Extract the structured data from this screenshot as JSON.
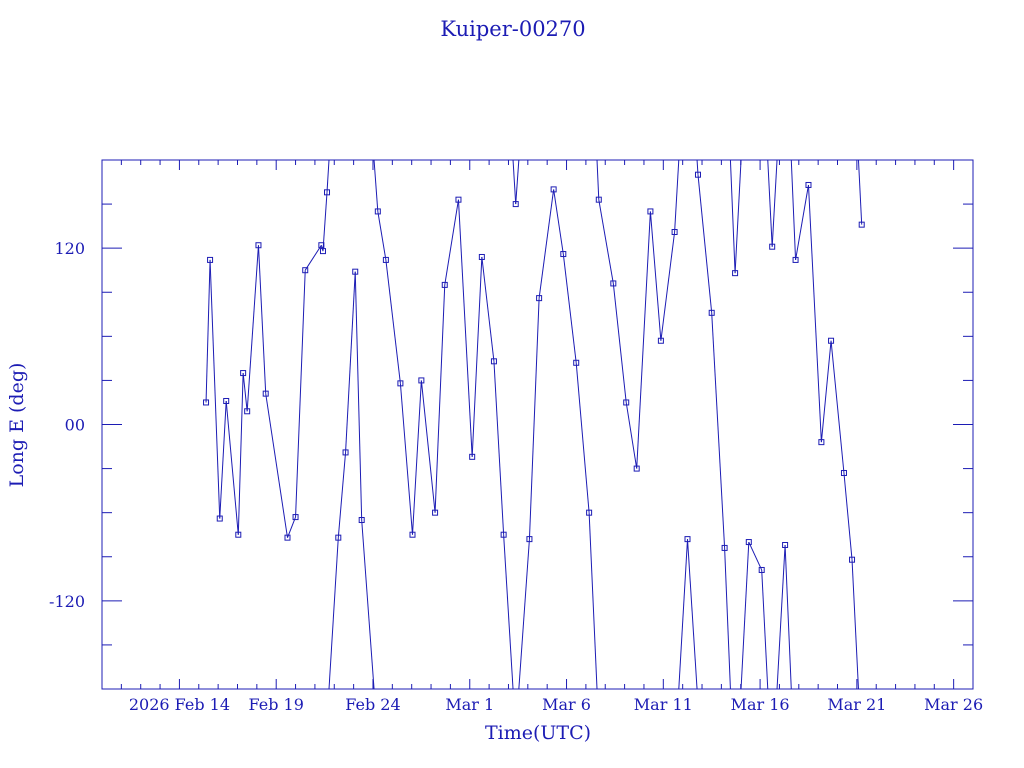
{
  "chart_data": {
    "type": "scatter",
    "title": "Kuiper-00270",
    "xlabel": "Time(UTC)",
    "ylabel": "Long E (deg)",
    "xlim": [
      "2026-02-10",
      "2026-03-27"
    ],
    "ylim": [
      -180,
      180
    ],
    "x_ticks": [
      {
        "label": "2026 Feb 14",
        "date": "2026-02-14"
      },
      {
        "label": "Feb 19",
        "date": "2026-02-19"
      },
      {
        "label": "Feb 24",
        "date": "2026-02-24"
      },
      {
        "label": "Mar  1",
        "date": "2026-03-01"
      },
      {
        "label": "Mar  6",
        "date": "2026-03-06"
      },
      {
        "label": "Mar 11",
        "date": "2026-03-11"
      },
      {
        "label": "Mar 16",
        "date": "2026-03-16"
      },
      {
        "label": "Mar 21",
        "date": "2026-03-21"
      },
      {
        "label": "Mar 26",
        "date": "2026-03-26"
      }
    ],
    "y_ticks": [
      {
        "label": "120",
        "value": 120
      },
      {
        "label": "00",
        "value": 0
      },
      {
        "label": "-120",
        "value": -120
      }
    ],
    "line_color": "#1c1cb4",
    "marker": "open-square",
    "series": [
      {
        "x": [
          "2026-02-15T09:00",
          "2026-02-15T14:00",
          "2026-02-16T02:00",
          "2026-02-16T10:00",
          "2026-02-17T01:00",
          "2026-02-17T07:00",
          "2026-02-17T12:00",
          "2026-02-18T02:00",
          "2026-02-18T11:00",
          "2026-02-19T14:00",
          "2026-02-20T00:00",
          "2026-02-20T12:00",
          "2026-02-21T08:00",
          "2026-02-21T10:00",
          "2026-02-21T15:00",
          "2026-02-22T05:00",
          "2026-02-22T14:00",
          "2026-02-23T02:00",
          "2026-02-23T10:00",
          "2026-02-24T06:00",
          "2026-02-24T16:00",
          "2026-02-25T10:00",
          "2026-02-26T01:00",
          "2026-02-26T12:00",
          "2026-02-27T05:00",
          "2026-02-27T17:00",
          "2026-02-28T10:00",
          "2026-03-01T03:00",
          "2026-03-01T15:00",
          "2026-03-02T06:00",
          "2026-03-02T18:00",
          "2026-03-03T09:00",
          "2026-03-04T02:00",
          "2026-03-04T14:00",
          "2026-03-05T08:00",
          "2026-03-05T20:00",
          "2026-03-06T12:00",
          "2026-03-07T04:00",
          "2026-03-07T16:00",
          "2026-03-08T10:00",
          "2026-03-09T02:00",
          "2026-03-09T15:00",
          "2026-03-10T08:00",
          "2026-03-10T21:00",
          "2026-03-11T14:00",
          "2026-03-12T06:00",
          "2026-03-12T19:00",
          "2026-03-13T12:00",
          "2026-03-14T04:00",
          "2026-03-14T17:00",
          "2026-03-15T10:00",
          "2026-03-16T02:00",
          "2026-03-16T15:00",
          "2026-03-17T07:00",
          "2026-03-17T20:00",
          "2026-03-18T12:00",
          "2026-03-19T04:00",
          "2026-03-19T16:00",
          "2026-03-20T08:00",
          "2026-03-20T18:00",
          "2026-03-21T06:00"
        ],
        "y": [
          15,
          112,
          -64,
          16,
          -75,
          35,
          9,
          122,
          21,
          -77,
          -63,
          105,
          122,
          118,
          158,
          -77,
          -19,
          104,
          -65,
          145,
          112,
          28,
          -75,
          30,
          -60,
          95,
          153,
          -22,
          114,
          43,
          -75,
          150,
          -78,
          86,
          160,
          116,
          42,
          -60,
          153,
          96,
          15,
          -30,
          145,
          57,
          131,
          -78,
          170,
          76,
          -84,
          103,
          -80,
          -99,
          121,
          -82,
          112,
          163,
          -12,
          57,
          -33,
          -92,
          136
        ]
      }
    ]
  }
}
